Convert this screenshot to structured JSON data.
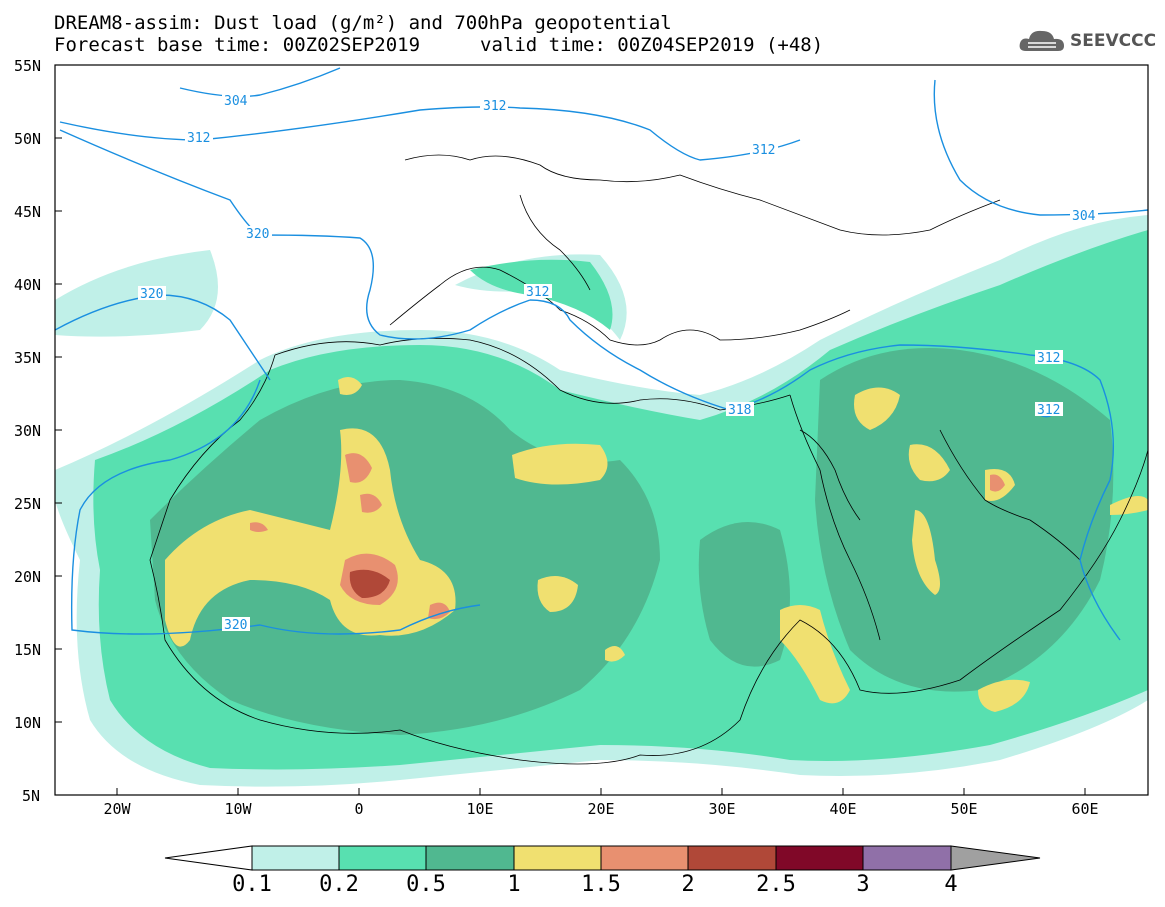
{
  "header": {
    "title_line1": "DREAM8-assim: Dust load (g/m²) and 700hPa geopotential",
    "title_line2": "Forecast base time: 00Z02SEP2019",
    "valid_time": "valid time: 00Z04SEP2019 (+48)",
    "logo_text": "SEEVCCC"
  },
  "axes": {
    "lat_labels": [
      "55N",
      "50N",
      "45N",
      "40N",
      "35N",
      "30N",
      "25N",
      "20N",
      "15N",
      "10N",
      "5N"
    ],
    "lon_labels": [
      "20W",
      "10W",
      "0",
      "10E",
      "20E",
      "30E",
      "40E",
      "50E",
      "60E"
    ]
  },
  "contours": {
    "geopotential_labels": [
      "304",
      "312",
      "312",
      "320",
      "320",
      "312",
      "312",
      "318",
      "312",
      "312",
      "304",
      "320"
    ]
  },
  "colorbar": {
    "labels": [
      "0.1",
      "0.2",
      "0.5",
      "1",
      "1.5",
      "2",
      "2.5",
      "3",
      "4"
    ],
    "colors": [
      "#c0f0e8",
      "#58e0b0",
      "#50b890",
      "#f0e070",
      "#e89070",
      "#b04838",
      "#800828",
      "#9070a8",
      "#a0a0a0"
    ]
  },
  "legend_colors": {
    "c01": "#c0f0e8",
    "c02": "#58e0b0",
    "c05": "#50b890",
    "c1": "#f0e070",
    "c15": "#e89070",
    "c2": "#b04838",
    "contour": "#1a8fe0"
  }
}
